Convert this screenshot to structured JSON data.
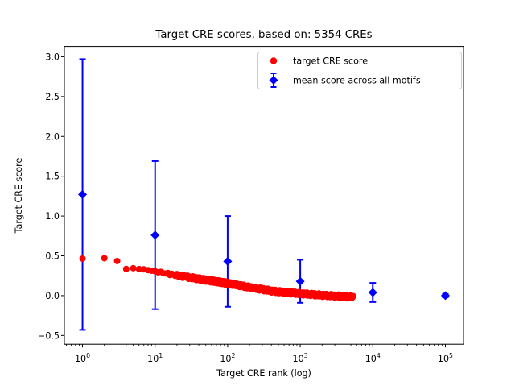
{
  "figure": {
    "background": "#ffffff",
    "plot_background": "#ffffff",
    "spine_color": "#000000"
  },
  "chart_data": {
    "type": "scatter",
    "title": "Target CRE scores, based on: 5354 CREs",
    "xlabel": "Target CRE rank (log)",
    "ylabel": "Target CRE score",
    "x_scale": "log",
    "grid": false,
    "xlim_log10": [
      -0.25,
      5.25
    ],
    "ylim": [
      -0.61,
      3.13
    ],
    "x_ticks_exponents": [
      0,
      1,
      2,
      3,
      4,
      5
    ],
    "y_ticks": [
      -0.5,
      0.0,
      0.5,
      1.0,
      1.5,
      2.0,
      2.5,
      3.0
    ],
    "legend_position": "upper right",
    "legend": [
      {
        "label": "target CRE score",
        "marker": "circle",
        "color": "#ff0000"
      },
      {
        "label": "mean score across all motifs",
        "marker": "diamond",
        "color": "#0000ff",
        "has_error_bar": true
      }
    ],
    "series": [
      {
        "name": "target CRE score",
        "marker": "circle",
        "color": "#ff0000",
        "n_points": 5354,
        "max_rank": 5354,
        "curve_keypoints_log10rank_score": [
          [
            0.0,
            0.465
          ],
          [
            0.301,
            0.47
          ],
          [
            0.477,
            0.435
          ],
          [
            0.602,
            0.335
          ],
          [
            0.699,
            0.345
          ],
          [
            0.778,
            0.335
          ],
          [
            0.845,
            0.33
          ],
          [
            1.0,
            0.305
          ],
          [
            1.3,
            0.255
          ],
          [
            1.6,
            0.21
          ],
          [
            2.0,
            0.155
          ],
          [
            2.3,
            0.105
          ],
          [
            2.63,
            0.055
          ],
          [
            3.0,
            0.025
          ],
          [
            3.3,
            0.005
          ],
          [
            3.5,
            -0.005
          ],
          [
            3.7286,
            -0.02
          ]
        ]
      },
      {
        "name": "mean score across all motifs",
        "marker": "diamond",
        "color": "#0000ff",
        "x": [
          1,
          10,
          100,
          1000,
          10000,
          100000
        ],
        "y": [
          1.27,
          0.76,
          0.43,
          0.18,
          0.04,
          0.0
        ],
        "yerr": [
          1.7,
          0.93,
          0.57,
          0.27,
          0.12,
          0.02
        ]
      }
    ]
  }
}
